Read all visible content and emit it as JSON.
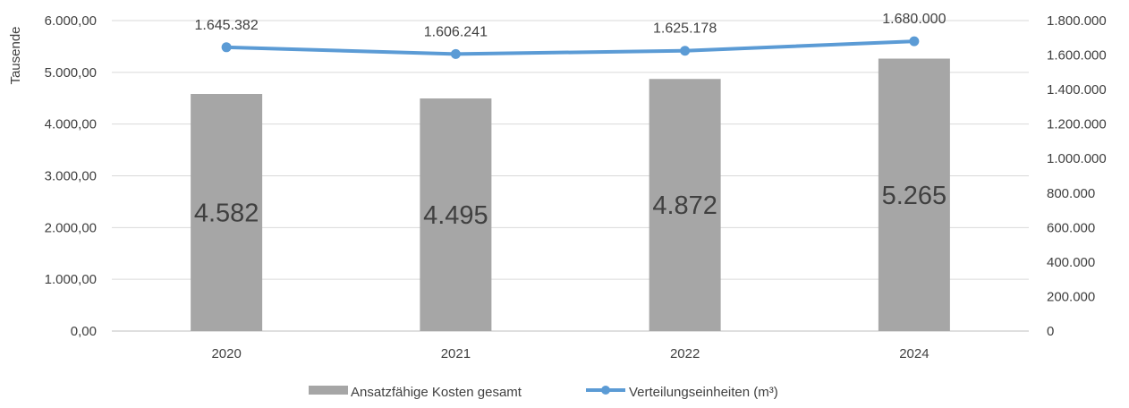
{
  "chart_data": {
    "type": "bar+line",
    "categories": [
      "2020",
      "2021",
      "2022",
      "2024"
    ],
    "series": [
      {
        "name": "Ansatzfähige Kosten gesamt",
        "type": "bar",
        "axis": "left",
        "values": [
          4582,
          4495,
          4872,
          5265
        ],
        "labels": [
          "4.582",
          "4.495",
          "4.872",
          "5.265"
        ],
        "color": "#a6a6a6"
      },
      {
        "name": "Verteilungseinheiten (m³)",
        "type": "line",
        "axis": "right",
        "values": [
          1645382,
          1606241,
          1625178,
          1680000
        ],
        "labels": [
          "1.645.382",
          "1.606.241",
          "1.625.178",
          "1.680.000"
        ],
        "color": "#5b9bd5"
      }
    ],
    "ylabel": "Tausende",
    "y_left": {
      "min": 0,
      "max": 6000,
      "ticks": [
        0,
        1000,
        2000,
        3000,
        4000,
        5000,
        6000
      ],
      "tick_labels": [
        "0,00",
        "1.000,00",
        "2.000,00",
        "3.000,00",
        "4.000,00",
        "5.000,00",
        "6.000,00"
      ]
    },
    "y_right": {
      "min": 0,
      "max": 1800000,
      "ticks": [
        0,
        200000,
        400000,
        600000,
        800000,
        1000000,
        1200000,
        1400000,
        1600000,
        1800000
      ],
      "tick_labels": [
        "0",
        "200.000",
        "400.000",
        "600.000",
        "800.000",
        "1.000.000",
        "1.200.000",
        "1.400.000",
        "1.600.000",
        "1.800.000"
      ]
    },
    "grid": true,
    "legend_position": "bottom"
  }
}
